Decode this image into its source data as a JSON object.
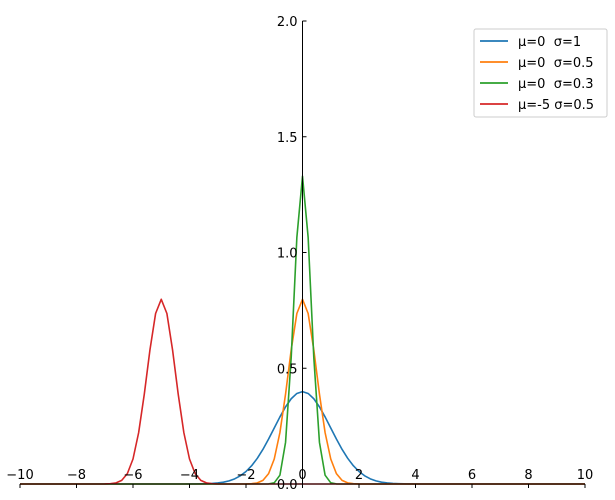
{
  "chart_data": {
    "type": "line",
    "title": "",
    "xlabel": "",
    "ylabel": "",
    "xlim": [
      -10,
      10
    ],
    "ylim": [
      0,
      2
    ],
    "grid": false,
    "spines": "centered",
    "legend_position": "top-right",
    "x_ticks": [
      -10,
      -8,
      -6,
      -4,
      -2,
      0,
      2,
      4,
      6,
      8,
      10
    ],
    "x_tick_labels": [
      "−10",
      "−8",
      "−6",
      "−4",
      "−2",
      "0",
      "2",
      "4",
      "6",
      "8",
      "10"
    ],
    "y_ticks": [
      0.0,
      0.5,
      1.0,
      1.5,
      2.0
    ],
    "y_tick_labels": [
      "0.0",
      "0.5",
      "1.0",
      "1.5",
      "2.0"
    ],
    "series": [
      {
        "name": "μ=0  σ=1",
        "mu": 0,
        "sigma": 1,
        "color": "#1f77b4"
      },
      {
        "name": "μ=0  σ=0.5",
        "mu": 0,
        "sigma": 0.5,
        "color": "#ff7f0e"
      },
      {
        "name": "μ=0  σ=0.3",
        "mu": 0,
        "sigma": 0.3,
        "color": "#2ca02c"
      },
      {
        "name": "μ=-5 σ=0.5",
        "mu": -5,
        "sigma": 0.5,
        "color": "#d62728"
      }
    ]
  }
}
